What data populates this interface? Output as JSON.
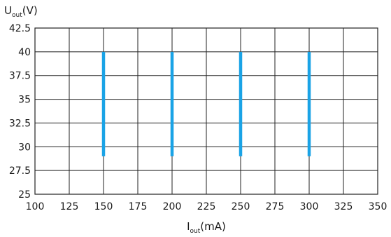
{
  "chart_data": {
    "type": "line",
    "title": "",
    "xlabel": {
      "main": "I",
      "sub": "out",
      "unit": "(mA)"
    },
    "ylabel": {
      "main": "U",
      "sub": "out",
      "unit": "(V)"
    },
    "xlim": [
      100,
      350
    ],
    "ylim": [
      25,
      42.5
    ],
    "x_ticks": [
      100,
      125,
      150,
      175,
      200,
      225,
      250,
      275,
      300,
      325,
      350
    ],
    "x_tick_labels": [
      "100",
      "125",
      "150",
      "175",
      "200",
      "225",
      "250",
      "275",
      "300",
      "325",
      "350"
    ],
    "y_ticks": [
      25,
      27.5,
      30,
      32.5,
      35,
      37.5,
      40,
      42.5
    ],
    "y_tick_labels": [
      "25",
      "27.5",
      "30",
      "32.5",
      "35",
      "37.5",
      "40",
      "42.5"
    ],
    "grid": true,
    "series": [
      {
        "x": [
          150,
          150
        ],
        "y": [
          29,
          40
        ]
      },
      {
        "x": [
          200,
          200
        ],
        "y": [
          29,
          40
        ]
      },
      {
        "x": [
          250,
          250
        ],
        "y": [
          29,
          40
        ]
      },
      {
        "x": [
          300,
          300
        ],
        "y": [
          29,
          40
        ]
      }
    ],
    "colors": {
      "series": "#1aa3e6",
      "grid": "#222222",
      "text": "#1a1a1a"
    }
  }
}
